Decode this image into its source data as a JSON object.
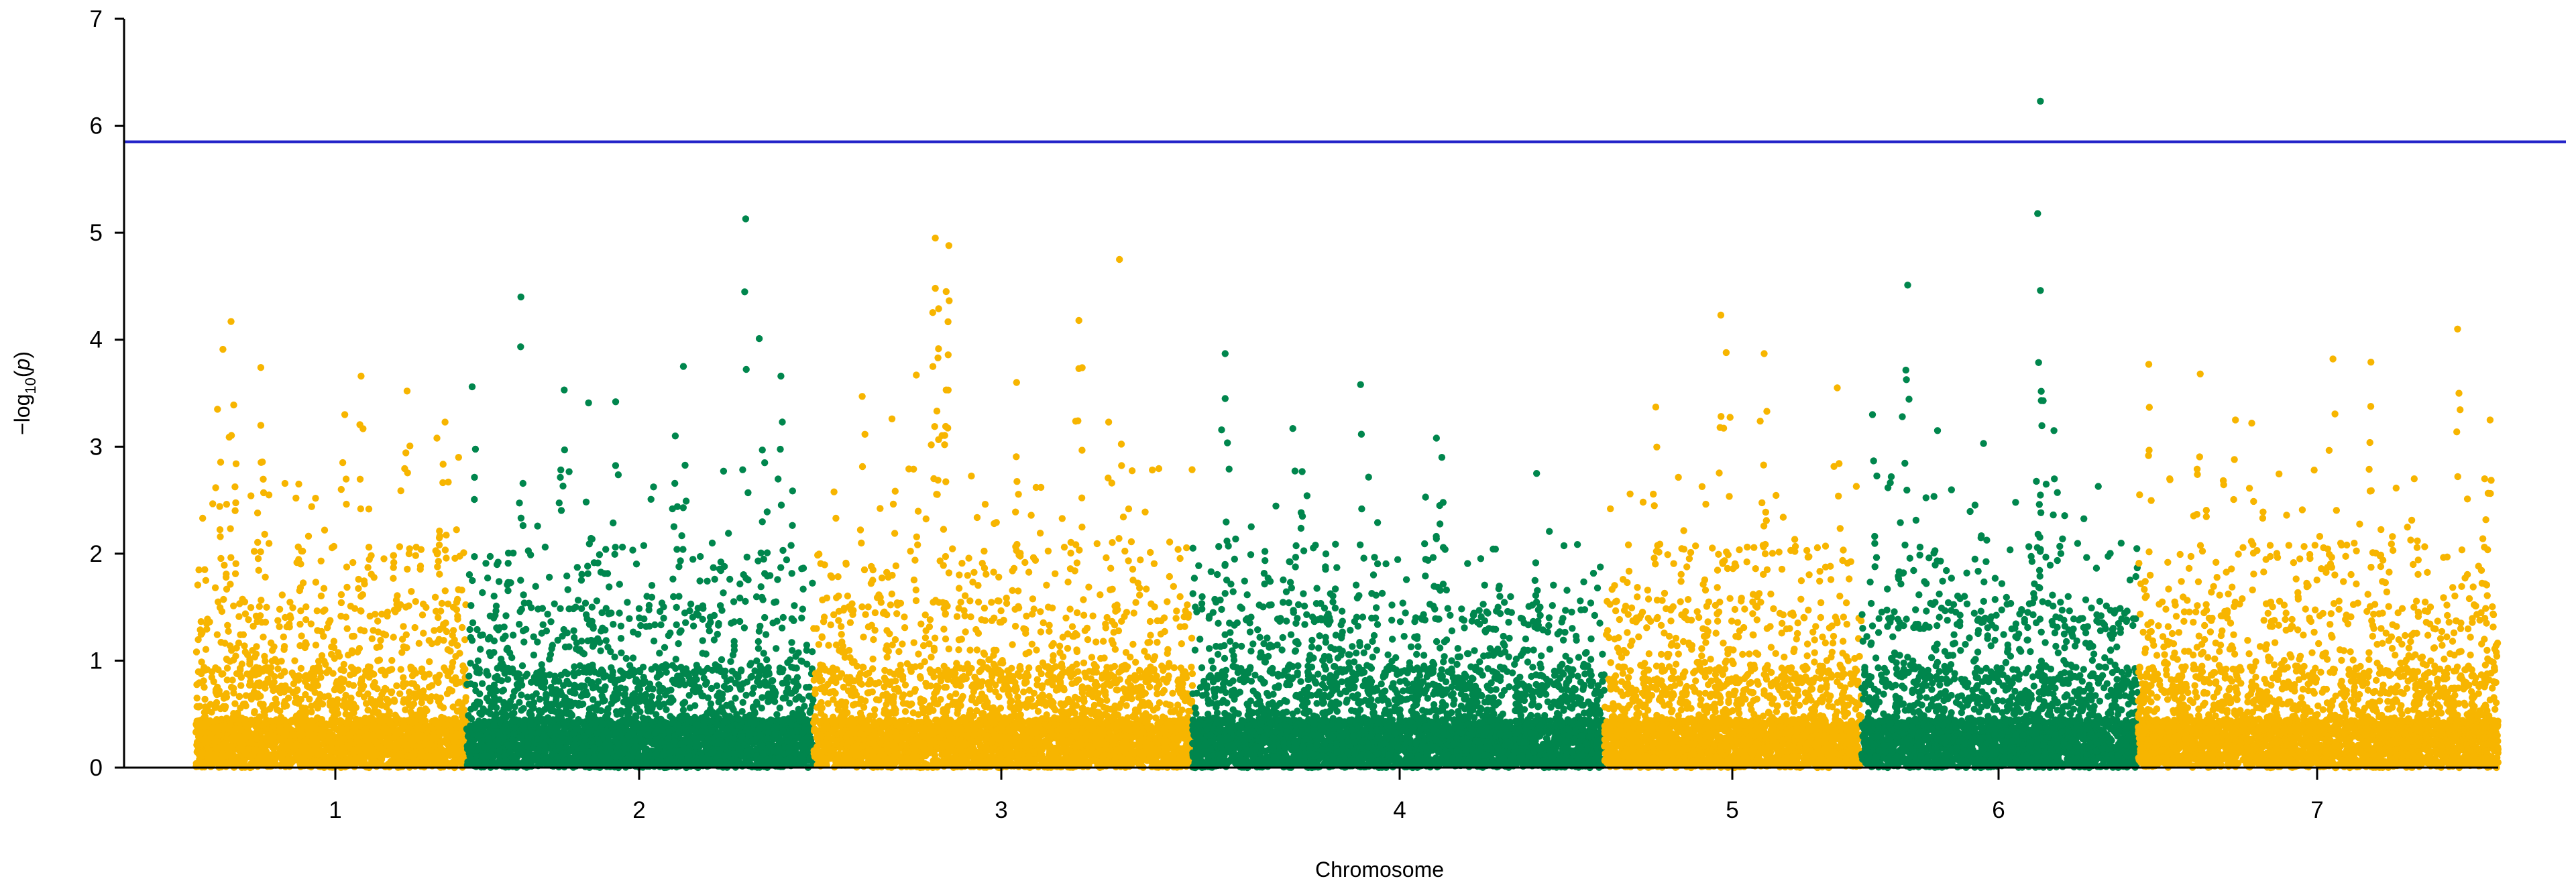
{
  "chart_data": {
    "type": "scatter",
    "title": "",
    "xlabel": "Chromosome",
    "ylabel": {
      "prefix": "−log",
      "subscript": "10",
      "open": "(",
      "var": "p",
      "close": ")"
    },
    "ylim": [
      0,
      7
    ],
    "yticks": [
      "0",
      "1",
      "2",
      "3",
      "4",
      "5",
      "6",
      "7"
    ],
    "threshold": {
      "value": 5.85,
      "color": "#2323c8"
    },
    "colors": {
      "odd": "#f7b500",
      "even": "#00864d"
    },
    "grid": false,
    "legend": "none",
    "chromosomes": [
      {
        "label": "1",
        "start": 0,
        "end": 1.0,
        "color": "odd",
        "peaks": [
          {
            "x": 0.1,
            "y": 3.91
          },
          {
            "x": 0.13,
            "y": 4.17
          },
          {
            "x": 0.08,
            "y": 3.35
          },
          {
            "x": 0.14,
            "y": 3.39
          },
          {
            "x": 0.24,
            "y": 3.74
          },
          {
            "x": 0.24,
            "y": 3.2
          },
          {
            "x": 0.38,
            "y": 2.65
          },
          {
            "x": 0.55,
            "y": 3.3
          },
          {
            "x": 0.61,
            "y": 3.66
          },
          {
            "x": 0.78,
            "y": 3.52
          },
          {
            "x": 0.89,
            "y": 3.08
          },
          {
            "x": 0.92,
            "y": 3.23
          },
          {
            "x": 0.97,
            "y": 2.9
          }
        ]
      },
      {
        "label": "2",
        "start": 1.0,
        "end": 2.28,
        "color": "even",
        "peaks": [
          {
            "x": 1.02,
            "y": 3.56
          },
          {
            "x": 1.2,
            "y": 4.4
          },
          {
            "x": 1.36,
            "y": 3.53
          },
          {
            "x": 1.45,
            "y": 3.41
          },
          {
            "x": 1.55,
            "y": 3.42
          },
          {
            "x": 1.8,
            "y": 3.75
          },
          {
            "x": 1.77,
            "y": 3.1
          },
          {
            "x": 2.03,
            "y": 5.13
          },
          {
            "x": 2.08,
            "y": 4.01
          },
          {
            "x": 2.16,
            "y": 3.66
          },
          {
            "x": 2.1,
            "y": 2.85
          }
        ]
      },
      {
        "label": "3",
        "start": 2.28,
        "end": 3.68,
        "color": "odd",
        "peaks": [
          {
            "x": 2.46,
            "y": 3.47
          },
          {
            "x": 2.57,
            "y": 3.26
          },
          {
            "x": 2.66,
            "y": 3.67
          },
          {
            "x": 2.73,
            "y": 4.95
          },
          {
            "x": 2.78,
            "y": 4.88
          },
          {
            "x": 2.73,
            "y": 4.48
          },
          {
            "x": 2.77,
            "y": 4.45
          },
          {
            "x": 2.74,
            "y": 3.83
          },
          {
            "x": 2.77,
            "y": 3.53
          },
          {
            "x": 3.03,
            "y": 3.6
          },
          {
            "x": 3.26,
            "y": 4.18
          },
          {
            "x": 3.26,
            "y": 3.73
          },
          {
            "x": 3.41,
            "y": 4.75
          },
          {
            "x": 3.37,
            "y": 3.23
          }
        ]
      },
      {
        "label": "4",
        "start": 3.68,
        "end": 5.2,
        "color": "even",
        "peaks": [
          {
            "x": 3.8,
            "y": 3.87
          },
          {
            "x": 3.8,
            "y": 3.45
          },
          {
            "x": 4.3,
            "y": 3.58
          },
          {
            "x": 4.58,
            "y": 3.08
          },
          {
            "x": 4.05,
            "y": 3.17
          },
          {
            "x": 4.6,
            "y": 2.9
          },
          {
            "x": 4.95,
            "y": 2.75
          }
        ]
      },
      {
        "label": "5",
        "start": 5.2,
        "end": 6.15,
        "color": "odd",
        "peaks": [
          {
            "x": 5.39,
            "y": 3.37
          },
          {
            "x": 5.63,
            "y": 4.23
          },
          {
            "x": 5.65,
            "y": 3.88
          },
          {
            "x": 5.79,
            "y": 3.87
          },
          {
            "x": 5.8,
            "y": 3.33
          },
          {
            "x": 6.06,
            "y": 3.55
          }
        ]
      },
      {
        "label": "6",
        "start": 6.15,
        "end": 7.17,
        "color": "even",
        "peaks": [
          {
            "x": 6.19,
            "y": 3.3
          },
          {
            "x": 6.32,
            "y": 4.51
          },
          {
            "x": 6.3,
            "y": 3.28
          },
          {
            "x": 6.43,
            "y": 3.15
          },
          {
            "x": 6.6,
            "y": 3.03
          },
          {
            "x": 6.81,
            "y": 6.23
          },
          {
            "x": 6.81,
            "y": 4.46
          },
          {
            "x": 6.82,
            "y": 3.43
          },
          {
            "x": 6.86,
            "y": 3.15
          }
        ]
      },
      {
        "label": "7",
        "start": 7.17,
        "end": 8.5,
        "color": "odd",
        "peaks": [
          {
            "x": 7.21,
            "y": 3.77
          },
          {
            "x": 7.4,
            "y": 3.68
          },
          {
            "x": 7.53,
            "y": 3.25
          },
          {
            "x": 7.59,
            "y": 3.22
          },
          {
            "x": 7.89,
            "y": 3.82
          },
          {
            "x": 8.03,
            "y": 3.79
          },
          {
            "x": 8.19,
            "y": 2.7
          },
          {
            "x": 8.35,
            "y": 4.1
          },
          {
            "x": 8.47,
            "y": 3.25
          },
          {
            "x": 8.45,
            "y": 2.7
          }
        ]
      }
    ]
  }
}
